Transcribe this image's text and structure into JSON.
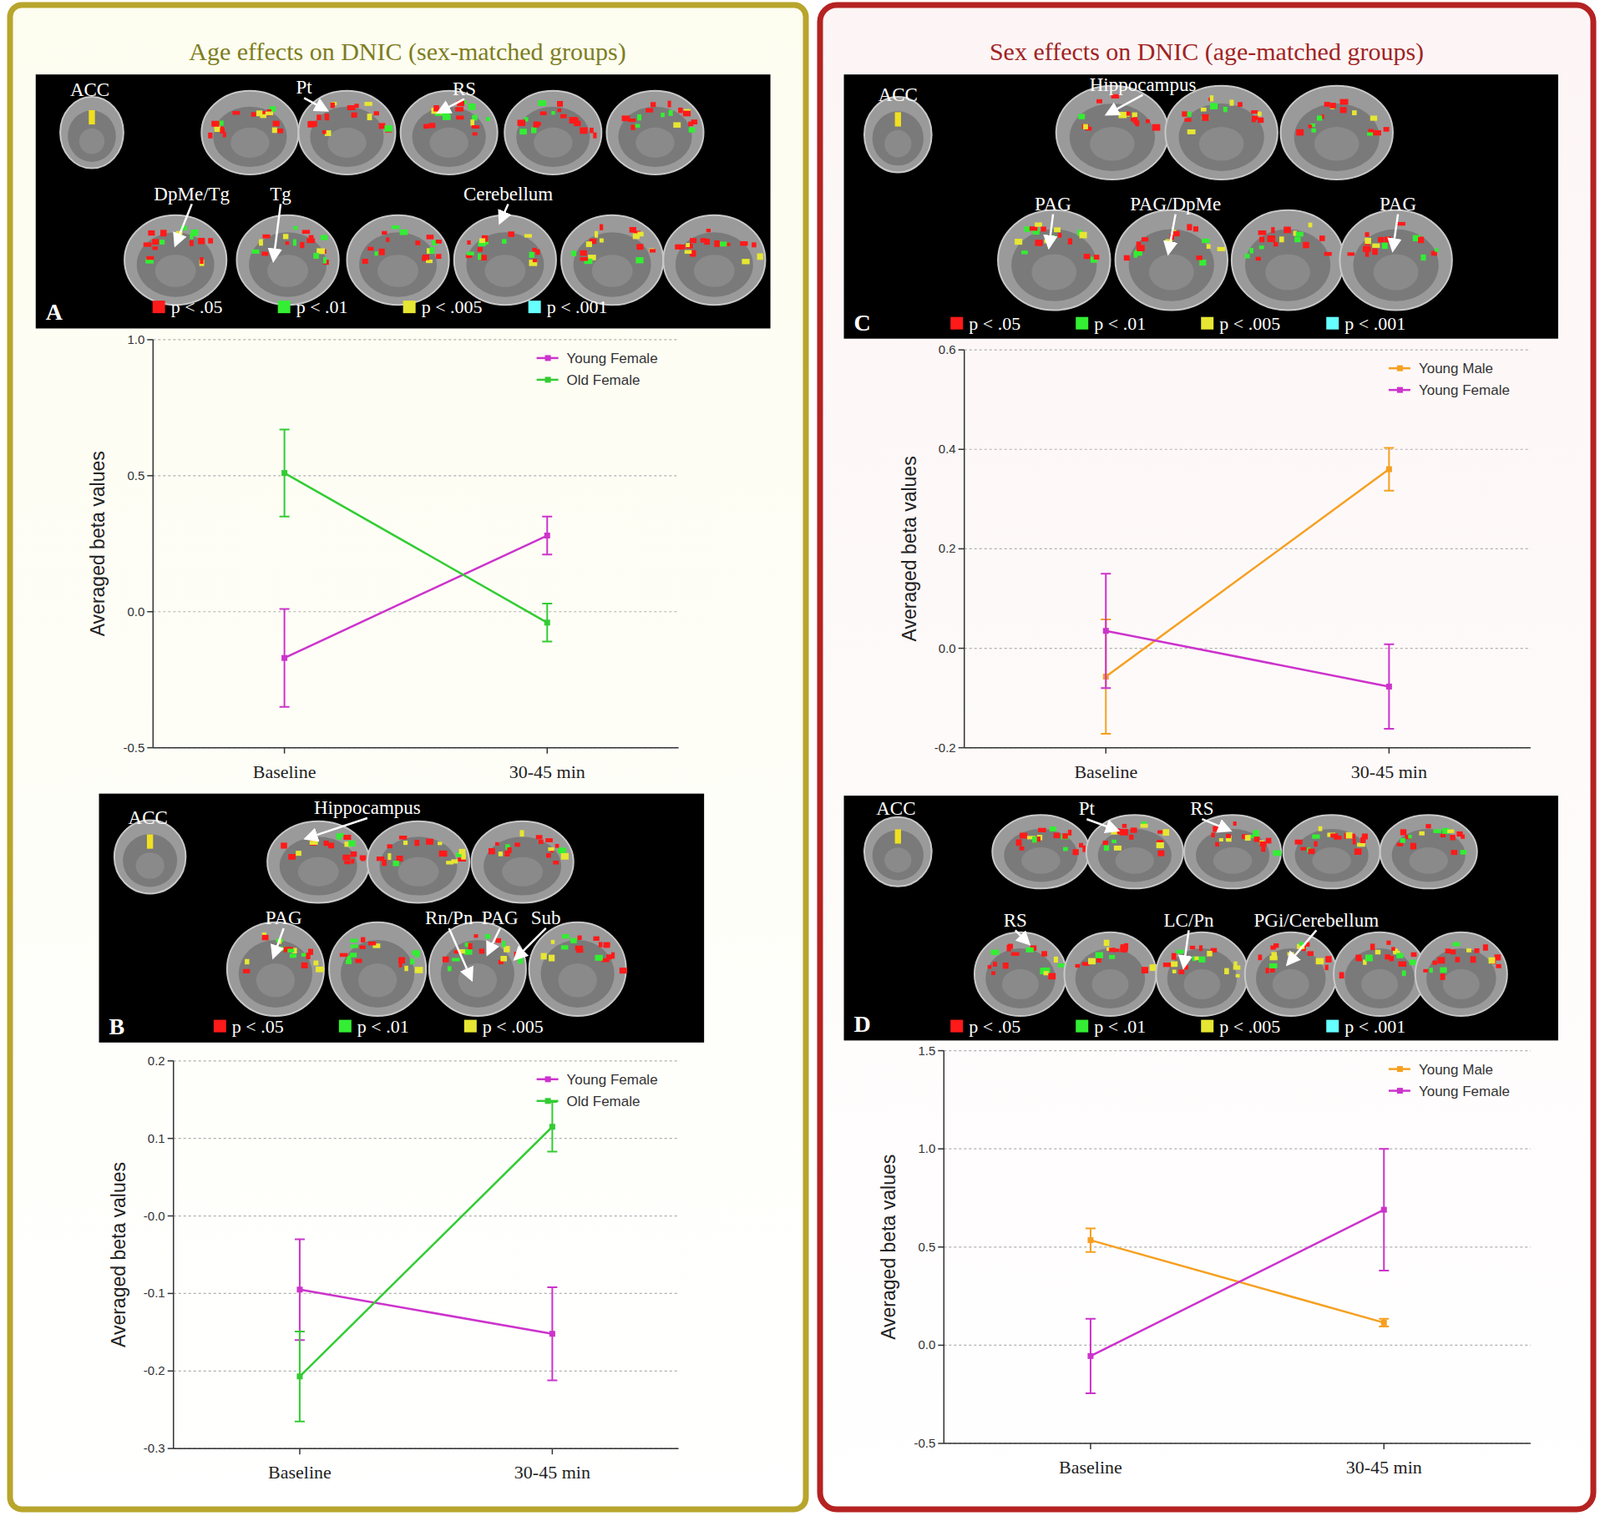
{
  "sections": [
    {
      "title": "Age effects on DNIC (sex-matched groups)"
    },
    {
      "title": "Sex effects on DNIC (age-matched groups)"
    }
  ],
  "chart_data": [
    {
      "type": "line",
      "panel_label": "A",
      "y_label": "Averaged beta values",
      "image_labels": [
        "ACC",
        "Pt",
        "RS",
        "DpMe/Tg",
        "Tg",
        "Cerebellum"
      ],
      "significance_legend": [
        {
          "label": "p < .05",
          "color": "#ff1a1a"
        },
        {
          "label": "p < .01",
          "color": "#33ee33"
        },
        {
          "label": "p < .005",
          "color": "#e6e633"
        },
        {
          "label": "p < .001",
          "color": "#66ffff"
        }
      ],
      "categories": [
        "Baseline",
        "30-45 min"
      ],
      "ylim": [
        -0.5,
        1
      ],
      "yticks": [
        -0.5,
        {
          "value": 0,
          "label": "0.0"
        },
        0.5,
        {
          "value": 1,
          "label": "1.0"
        }
      ],
      "grid": true,
      "legend": "top-right",
      "series": [
        {
          "name": "Young Female",
          "color": "#cc33cc",
          "marker": "square",
          "values": [
            -0.17,
            0.28
          ],
          "errors": [
            0.18,
            0.07
          ]
        },
        {
          "name": "Old Female",
          "color": "#33cc33",
          "marker": "square",
          "values": [
            0.51,
            -0.04
          ],
          "errors": [
            0.16,
            0.07
          ]
        }
      ]
    },
    {
      "type": "line",
      "panel_label": "B",
      "y_label": "Averaged beta values",
      "image_labels": [
        "ACC",
        "Hippocampus",
        "PAG",
        "Rn/Pn",
        "PAG",
        "Sub"
      ],
      "significance_legend": [
        {
          "label": "p < .05",
          "color": "#ff1a1a"
        },
        {
          "label": "p < .01",
          "color": "#33ee33"
        },
        {
          "label": "p < .005",
          "color": "#e6e633"
        }
      ],
      "categories": [
        "Baseline",
        "30-45 min"
      ],
      "ylim": [
        -0.3,
        0.2
      ],
      "yticks": [
        -0.3,
        -0.2,
        -0.1,
        {
          "value": 0,
          "label": "-0.0"
        },
        0.1,
        0.2
      ],
      "grid": true,
      "legend": "top-right",
      "series": [
        {
          "name": "Young Female",
          "color": "#cc33cc",
          "marker": "square",
          "values": [
            -0.095,
            -0.152
          ],
          "errors": [
            0.065,
            0.06
          ]
        },
        {
          "name": "Old Female",
          "color": "#33cc33",
          "marker": "square",
          "values": [
            -0.207,
            0.115
          ],
          "errors": [
            0.058,
            0.032
          ]
        }
      ]
    },
    {
      "type": "line",
      "panel_label": "C",
      "y_label": "Averaged beta values",
      "image_labels": [
        "ACC",
        "Hippocampus",
        "PAG",
        "PAG/DpMe",
        "PAG"
      ],
      "significance_legend": [
        {
          "label": "p < .05",
          "color": "#ff1a1a"
        },
        {
          "label": "p < .01",
          "color": "#33ee33"
        },
        {
          "label": "p < .005",
          "color": "#e6e633"
        },
        {
          "label": "p < .001",
          "color": "#66ffff"
        }
      ],
      "categories": [
        "Baseline",
        "30-45 min"
      ],
      "ylim": [
        -0.2,
        0.6
      ],
      "yticks": [
        -0.2,
        {
          "value": 0,
          "label": "0.0"
        },
        0.2,
        0.4,
        0.6
      ],
      "grid": true,
      "legend": "top-right",
      "series": [
        {
          "name": "Young Male",
          "color": "#f5a020",
          "marker": "square",
          "values": [
            -0.057,
            0.36
          ],
          "errors": [
            0.115,
            0.043
          ]
        },
        {
          "name": "Young Female",
          "color": "#cc33cc",
          "marker": "square",
          "values": [
            0.035,
            -0.077
          ],
          "errors": [
            0.115,
            0.085
          ]
        }
      ]
    },
    {
      "type": "line",
      "panel_label": "D",
      "y_label": "Averaged beta values",
      "image_labels": [
        "ACC",
        "Pt",
        "RS",
        "RS",
        "LC/Pn",
        "PGi/Cerebellum"
      ],
      "significance_legend": [
        {
          "label": "p < .05",
          "color": "#ff1a1a"
        },
        {
          "label": "p < .01",
          "color": "#33ee33"
        },
        {
          "label": "p < .005",
          "color": "#e6e633"
        },
        {
          "label": "p < .001",
          "color": "#66ffff"
        }
      ],
      "categories": [
        "Baseline",
        "30-45 min"
      ],
      "ylim": [
        -0.5,
        1.5
      ],
      "yticks": [
        -0.5,
        {
          "value": 0,
          "label": "0.0"
        },
        0.5,
        {
          "value": 1,
          "label": "1.0"
        },
        1.5
      ],
      "grid": true,
      "legend": "top-right",
      "series": [
        {
          "name": "Young Male",
          "color": "#f5a020",
          "marker": "square",
          "values": [
            0.535,
            0.115
          ],
          "errors": [
            0.06,
            0.02
          ]
        },
        {
          "name": "Young Female",
          "color": "#cc33cc",
          "marker": "square",
          "values": [
            -0.055,
            0.69
          ],
          "errors": [
            0.19,
            0.31
          ]
        }
      ]
    }
  ]
}
